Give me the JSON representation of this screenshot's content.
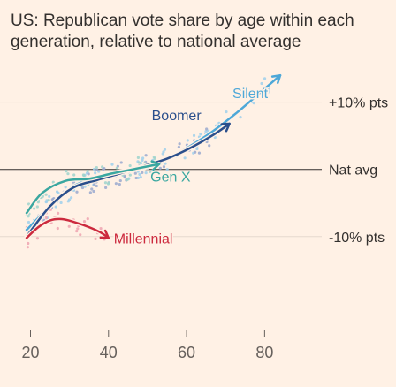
{
  "chart_data": {
    "type": "line",
    "title": "US: Republican vote share by age within each generation, relative to national average",
    "xlabel": "",
    "ylabel": "",
    "xlim": [
      14,
      96
    ],
    "ylim": [
      -14.5,
      16
    ],
    "x_ticks": [
      20,
      40,
      60,
      80
    ],
    "reference_lines": [
      {
        "label": "+10% pts",
        "y": 10
      },
      {
        "label": "Nat avg",
        "y": 0
      },
      {
        "label": "-10% pts",
        "y": -10
      }
    ],
    "series": [
      {
        "name": "Silent",
        "color": "#4ea8d8",
        "x": [
          19,
          25,
          31,
          37,
          43,
          49,
          55,
          61,
          67,
          73,
          79,
          84
        ],
        "y": [
          -9,
          -5.5,
          -2.5,
          -1.3,
          -0.3,
          0.2,
          1.5,
          3.5,
          5.8,
          8.5,
          11.5,
          14
        ]
      },
      {
        "name": "Boomer",
        "color": "#2b4f8c",
        "x": [
          19,
          25,
          31,
          37,
          43,
          49,
          55,
          61,
          67,
          71
        ],
        "y": [
          -10,
          -5.5,
          -2.7,
          -1.6,
          -0.6,
          0.5,
          1.6,
          3.2,
          5.2,
          6.8
        ]
      },
      {
        "name": "Gen X",
        "color": "#3aa7a0",
        "x": [
          19,
          23,
          29,
          35,
          41,
          47,
          53
        ],
        "y": [
          -6.5,
          -3.5,
          -1.7,
          -1.4,
          -0.6,
          0.1,
          0.8
        ]
      },
      {
        "name": "Millennial",
        "color": "#cc2a3e",
        "x": [
          19,
          22,
          25,
          28,
          31,
          35,
          38,
          40
        ],
        "y": [
          -10.2,
          -8.6,
          -7.6,
          -7.4,
          -7.8,
          -8.6,
          -9.4,
          -10.2
        ]
      }
    ],
    "dot_colors": {
      "Silent": "#9fd0ec",
      "Boomer": "#9aa9cf",
      "Gen X": "#9fd3cd",
      "Millennial": "#efa3b0"
    }
  }
}
